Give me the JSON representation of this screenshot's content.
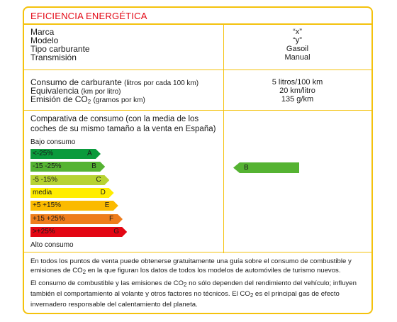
{
  "header": {
    "title": "EFICIENCIA ENERGÉTICA"
  },
  "vehicle": {
    "labels": [
      "Marca",
      "Modelo",
      "Tipo carburante",
      "Transmisión"
    ],
    "values": [
      "“x”",
      "“y”",
      "Gasoil",
      "Manual"
    ]
  },
  "consumption": {
    "consumo_label": "Consumo de carburante",
    "consumo_unit": "(litros por cada 100 km)",
    "equivalencia_label": "Equivalencia",
    "equivalencia_unit": "(km por litro)",
    "emision_label": "Emisión de CO",
    "emision_sub": "2",
    "emision_unit": "(gramos por km)",
    "values": [
      "5 litros/100 km",
      "20 km/litro",
      "135 g/km"
    ]
  },
  "comparison": {
    "title": "Comparativa de consumo",
    "title_note": "(con la media de los coches de su mismo tamaño a la venta en España)",
    "low_label": "Bajo consumo",
    "high_label": "Alto consumo",
    "bands": [
      {
        "range": "<-25%",
        "letter": "A",
        "color": "#0a9a3c"
      },
      {
        "range": "-15 -25%",
        "letter": "B",
        "color": "#55b332"
      },
      {
        "range": "-5  -15%",
        "letter": "C",
        "color": "#b7d333"
      },
      {
        "range": "media",
        "letter": "D",
        "color": "#ffed00"
      },
      {
        "range": "+5  +15%",
        "letter": "E",
        "color": "#fbba00"
      },
      {
        "range": "+15 +25%",
        "letter": "F",
        "color": "#ee7d1d"
      },
      {
        "range": ">+25%",
        "letter": "G",
        "color": "#e30613"
      }
    ],
    "vehicle_class": "B",
    "vehicle_class_color": "#55b332"
  },
  "footer": {
    "p1_a": "En todos los puntos de venta puede obtenerse gratuitamente una guía sobre el consumo de combustible y emisiones de CO",
    "p1_sub": "2",
    "p1_b": " en la que figuran los datos de todos los modelos de automóviles de turismo nuevos.",
    "p2_a": "El consumo de combustible y las emisiones de CO",
    "p2_sub1": "2",
    "p2_b": " no sólo dependen del rendimiento del vehículo; influyen también el comportamiento al volante y otros factores no técnicos. El CO",
    "p2_sub2": "2",
    "p2_c": " es el principal gas de efecto invernadero responsable del calentamiento del planeta."
  },
  "colors": {
    "frame": "#f4c20d",
    "title": "#e30613"
  }
}
